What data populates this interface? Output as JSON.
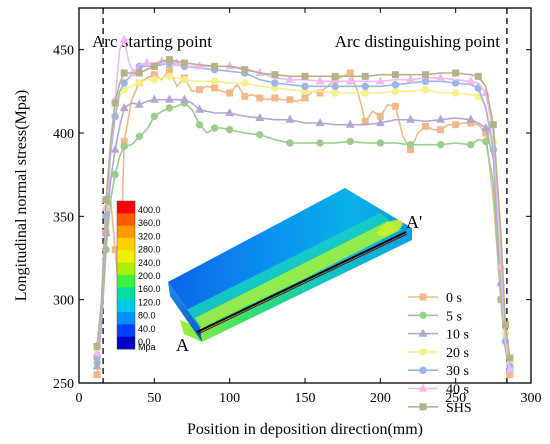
{
  "chart_data": {
    "type": "line",
    "title": "",
    "xlabel": "Position in deposition direction(mm)",
    "ylabel": "Longitudinal normal stress(Mpa)",
    "xlim": [
      0,
      300
    ],
    "ylim": [
      250,
      475
    ],
    "xticks": [
      "0",
      "50",
      "100",
      "150",
      "200",
      "250",
      "300"
    ],
    "yticks": [
      "250",
      "300",
      "350",
      "400",
      "450"
    ],
    "grid": false,
    "legend_position": "lower-right",
    "annotations": {
      "start_label": "Arc starting point",
      "end_label": "Arc distinguishing point",
      "start_x": 16,
      "end_x": 284
    },
    "series": [
      {
        "name": "0 s",
        "color": "#f2b888",
        "marker": "square",
        "x": [
          12,
          15,
          18,
          21,
          24,
          27,
          30,
          35,
          40,
          45,
          50,
          55,
          60,
          65,
          70,
          75,
          80,
          85,
          90,
          95,
          100,
          105,
          110,
          115,
          120,
          125,
          130,
          135,
          140,
          145,
          150,
          155,
          160,
          165,
          170,
          175,
          180,
          185,
          190,
          195,
          200,
          205,
          210,
          215,
          220,
          225,
          230,
          235,
          240,
          245,
          250,
          255,
          260,
          265,
          270,
          275,
          280,
          283,
          286
        ],
        "y": [
          255,
          290,
          340,
          360,
          330,
          300,
          395,
          420,
          430,
          433,
          435,
          432,
          438,
          428,
          433,
          425,
          426,
          428,
          427,
          425,
          424,
          429,
          422,
          423,
          421,
          420,
          421,
          420,
          420,
          419,
          421,
          425,
          424,
          428,
          432,
          434,
          436,
          425,
          407,
          413,
          410,
          417,
          416,
          398,
          390,
          400,
          404,
          402,
          402,
          405,
          405,
          406,
          406,
          405,
          400,
          360,
          300,
          270,
          255
        ]
      },
      {
        "name": "5 s",
        "color": "#9acd8c",
        "marker": "circle",
        "x": [
          12,
          15,
          18,
          21,
          24,
          27,
          30,
          35,
          40,
          45,
          50,
          55,
          60,
          65,
          70,
          75,
          80,
          85,
          90,
          95,
          100,
          110,
          120,
          130,
          140,
          150,
          160,
          170,
          180,
          190,
          200,
          210,
          220,
          230,
          240,
          250,
          260,
          265,
          270,
          275,
          280,
          283,
          286
        ],
        "y": [
          262,
          285,
          330,
          360,
          375,
          386,
          392,
          393,
          398,
          402,
          410,
          413,
          415,
          416,
          418,
          414,
          405,
          400,
          403,
          403,
          402,
          400,
          399,
          396,
          394,
          394,
          394,
          394,
          395,
          394,
          394,
          394,
          393,
          393,
          393,
          394,
          393,
          396,
          395,
          370,
          300,
          270,
          258
        ]
      },
      {
        "name": "10 s",
        "color": "#b3a6d4",
        "marker": "triangle",
        "x": [
          12,
          15,
          18,
          21,
          24,
          27,
          30,
          35,
          40,
          45,
          50,
          55,
          60,
          65,
          70,
          75,
          80,
          90,
          100,
          110,
          120,
          130,
          140,
          150,
          160,
          170,
          180,
          190,
          200,
          210,
          220,
          230,
          240,
          250,
          260,
          265,
          270,
          275,
          280,
          283,
          286
        ],
        "y": [
          260,
          288,
          340,
          372,
          390,
          404,
          415,
          418,
          417,
          419,
          420,
          420,
          420,
          420,
          420,
          418,
          414,
          412,
          412,
          410,
          409,
          408,
          408,
          406,
          406,
          405,
          405,
          405,
          406,
          408,
          408,
          407,
          408,
          409,
          408,
          406,
          403,
          385,
          310,
          275,
          258
        ]
      },
      {
        "name": "20 s",
        "color": "#f4f08a",
        "marker": "circle",
        "x": [
          12,
          15,
          18,
          21,
          24,
          27,
          30,
          35,
          40,
          45,
          50,
          55,
          60,
          65,
          70,
          80,
          90,
          100,
          110,
          120,
          130,
          140,
          150,
          160,
          170,
          180,
          190,
          200,
          210,
          220,
          230,
          240,
          250,
          260,
          265,
          270,
          275,
          280,
          283,
          286
        ],
        "y": [
          270,
          300,
          355,
          390,
          410,
          422,
          426,
          428,
          430,
          432,
          432,
          433,
          434,
          433,
          432,
          431,
          431,
          430,
          430,
          428,
          427,
          426,
          425,
          425,
          424,
          424,
          424,
          424,
          425,
          425,
          426,
          424,
          424,
          423,
          422,
          416,
          395,
          330,
          280,
          262
        ]
      },
      {
        "name": "30 s",
        "color": "#9bb5e8",
        "marker": "circle",
        "x": [
          12,
          15,
          18,
          21,
          24,
          27,
          30,
          35,
          40,
          45,
          50,
          55,
          60,
          65,
          70,
          80,
          90,
          100,
          110,
          120,
          130,
          140,
          150,
          160,
          170,
          180,
          190,
          200,
          210,
          220,
          230,
          240,
          250,
          260,
          265,
          270,
          275,
          280,
          283,
          286
        ],
        "y": [
          265,
          296,
          350,
          388,
          410,
          425,
          430,
          435,
          440,
          440,
          440,
          441,
          442,
          441,
          440,
          439,
          438,
          437,
          436,
          432,
          430,
          429,
          428,
          428,
          428,
          428,
          428,
          428,
          429,
          430,
          431,
          431,
          430,
          429,
          427,
          415,
          390,
          320,
          275,
          260
        ]
      },
      {
        "name": "40 s",
        "color": "#f0b8f0",
        "marker": "triangle",
        "x": [
          12,
          15,
          18,
          21,
          24,
          27,
          30,
          33,
          36,
          40,
          45,
          50,
          55,
          60,
          65,
          70,
          80,
          90,
          100,
          110,
          120,
          130,
          140,
          150,
          160,
          170,
          180,
          190,
          200,
          210,
          220,
          230,
          240,
          250,
          260,
          265,
          270,
          275,
          280,
          283,
          286
        ],
        "y": [
          268,
          298,
          355,
          392,
          420,
          450,
          456,
          443,
          436,
          441,
          442,
          442,
          443,
          443,
          442,
          440,
          440,
          440,
          440,
          439,
          436,
          433,
          432,
          432,
          431,
          431,
          431,
          431,
          431,
          432,
          432,
          433,
          433,
          432,
          431,
          430,
          424,
          400,
          320,
          275,
          258
        ]
      },
      {
        "name": "SHS",
        "color": "#b8b08a",
        "marker": "square",
        "x": [
          12,
          15,
          18,
          21,
          24,
          27,
          30,
          35,
          40,
          45,
          50,
          55,
          60,
          65,
          70,
          80,
          90,
          100,
          110,
          120,
          130,
          140,
          150,
          160,
          170,
          180,
          190,
          200,
          210,
          220,
          230,
          240,
          250,
          260,
          265,
          270,
          275,
          280,
          283,
          286
        ],
        "y": [
          272,
          300,
          360,
          395,
          418,
          430,
          436,
          436,
          436,
          438,
          440,
          443,
          444,
          443,
          442,
          441,
          440,
          440,
          438,
          436,
          435,
          434,
          434,
          434,
          434,
          434,
          434,
          435,
          435,
          435,
          435,
          436,
          436,
          435,
          434,
          428,
          405,
          340,
          285,
          265
        ]
      }
    ]
  },
  "inset": {
    "colorbar_labels": [
      "400.0",
      "360.0",
      "320.0",
      "280.0",
      "240.0",
      "200.0",
      "160.0",
      "120.0",
      "80.0",
      "40.0",
      "0.0"
    ],
    "colorbar_unit": "Mpa",
    "colorbar_colors": [
      "#ff0000",
      "#ff5a00",
      "#ff9a00",
      "#ffd000",
      "#f0f000",
      "#a8f000",
      "#40f040",
      "#00e0a0",
      "#00c8e8",
      "#0090ff",
      "#0040ff",
      "#0000c8"
    ],
    "point_a": "A",
    "point_a_prime": "A'"
  }
}
